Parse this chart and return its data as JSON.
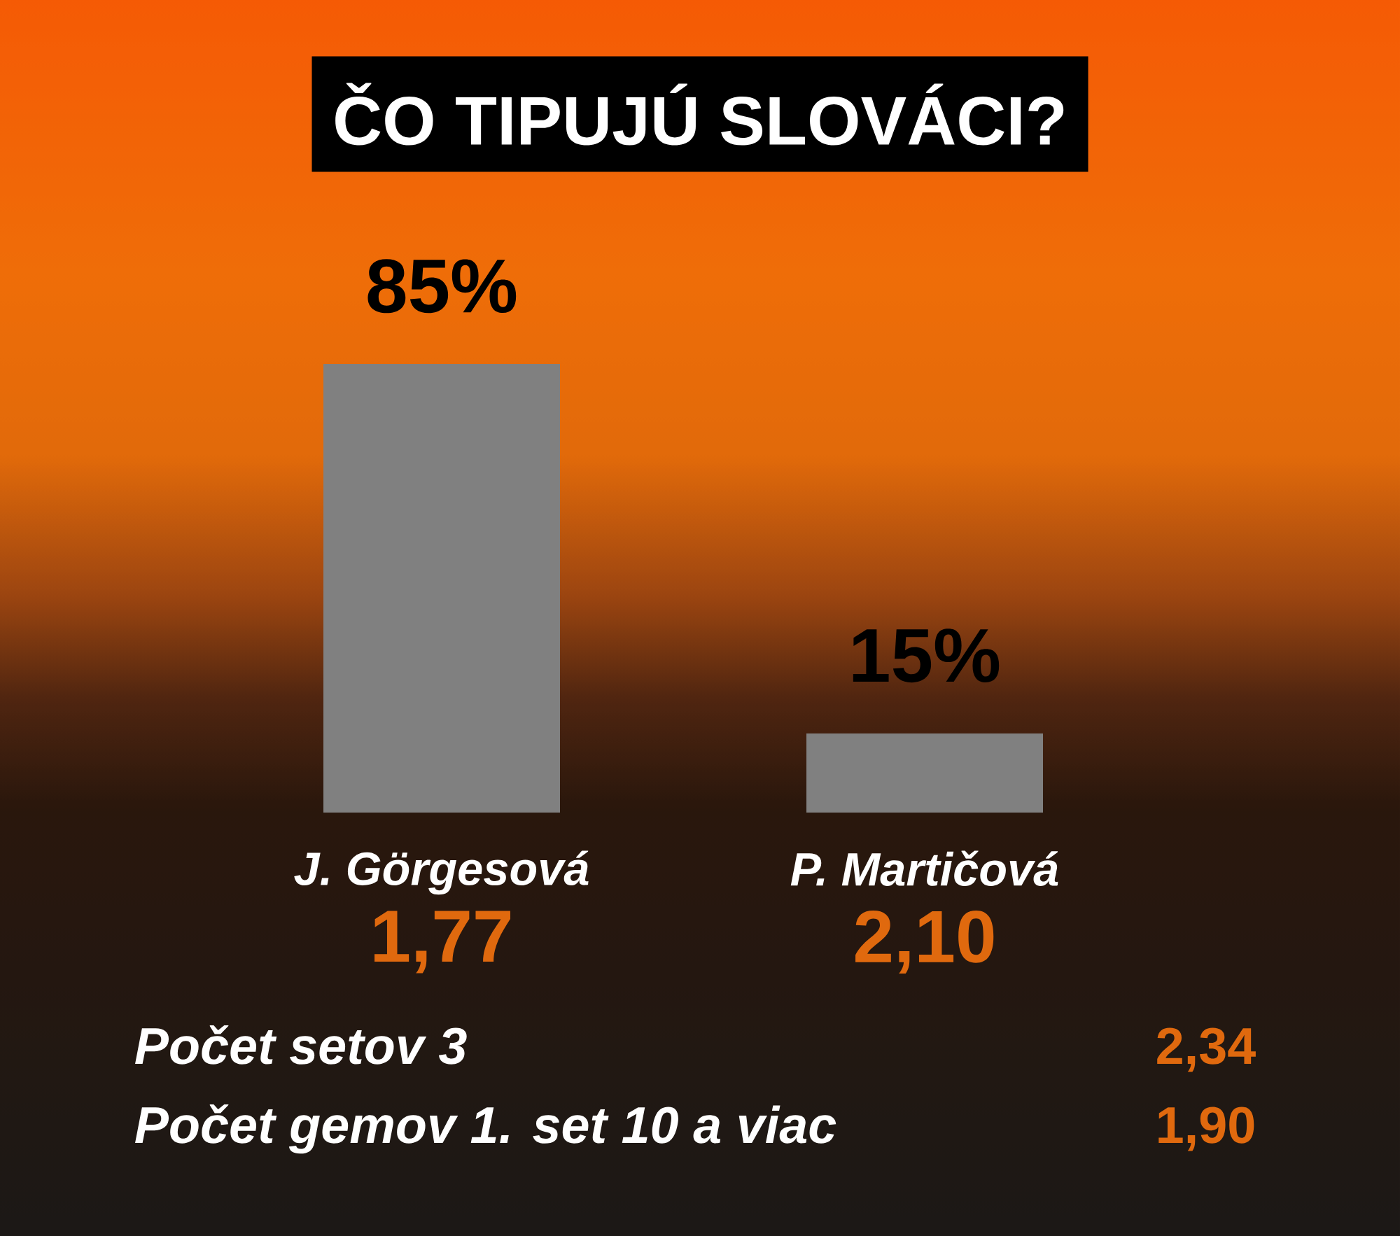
{
  "chart_data": {
    "type": "bar",
    "title": "ČO TIPUJÚ SLOVÁCI?",
    "categories": [
      "J. Görgesová",
      "P. Martičová"
    ],
    "values": [
      85,
      15
    ],
    "value_labels": [
      "85%",
      "15%"
    ],
    "color": "#808080",
    "tick_labels": "x",
    "annotations": [
      "1,77",
      "2,10",
      "Počet setov 3",
      "2,34",
      "Počet gemov 1. set 10 a viac",
      "1,90"
    ]
  }
}
